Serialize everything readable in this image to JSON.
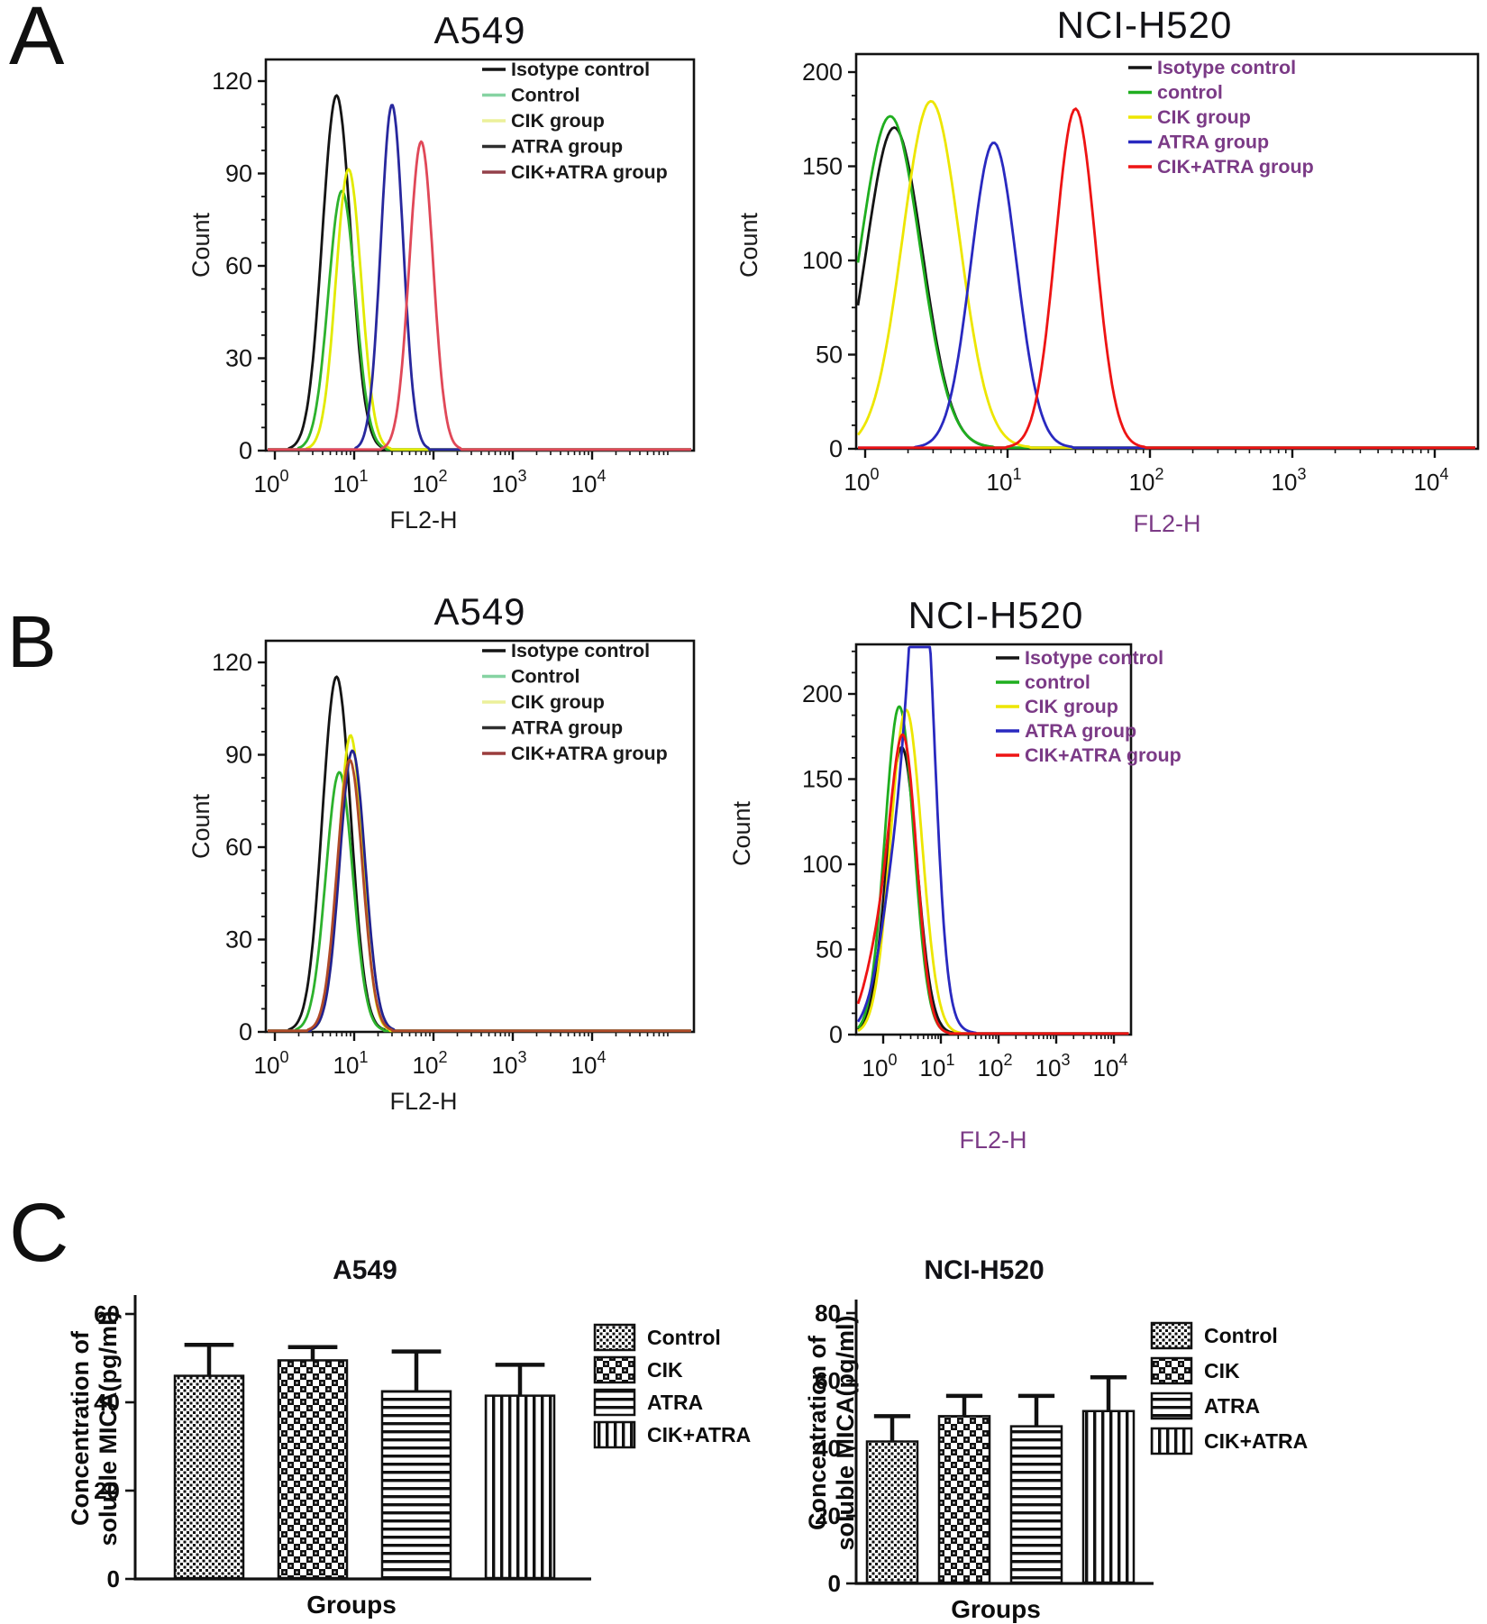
{
  "figure": {
    "panel_labels": {
      "a": "A",
      "b": "B",
      "c": "C"
    },
    "accent_colors": {
      "purple_legend_text": "#7b3a86",
      "black_text": "#111111",
      "series_black": "#141414",
      "series_green": "#22b122",
      "series_yellow": "#e8e400",
      "series_blue": "#2a2ab0",
      "series_red": "#ee1414",
      "series_crimson": "#e04858"
    }
  },
  "chart_data": [
    {
      "panel": "A",
      "side": "left",
      "type": "flow_histogram",
      "title": "A549",
      "xlabel": "FL2-H",
      "ylabel": "Count",
      "xscale": "log",
      "xtick_exponents": [
        0,
        1,
        2,
        3,
        4
      ],
      "ylim": [
        0,
        126
      ],
      "yticks": [
        0,
        30,
        60,
        90,
        120
      ],
      "grid": false,
      "legend_position": "top-right-inside",
      "legend_text_color": "#1a1a1a",
      "xlabel_color": "#1a1a1a",
      "series": [
        {
          "name": "Isotype control",
          "color": "#141414",
          "legend_color": "#141414",
          "peaks": [
            {
              "x": 6,
              "count": 115,
              "width_decades": 0.18
            }
          ]
        },
        {
          "name": "Control",
          "color": "#2db22d",
          "legend_color": "#86d3a2",
          "peaks": [
            {
              "x": 7,
              "count": 84,
              "width_decades": 0.17
            }
          ]
        },
        {
          "name": "CIK group",
          "color": "#e2ea00",
          "legend_color": "#ecf09a",
          "peaks": [
            {
              "x": 8.5,
              "count": 91,
              "width_decades": 0.16
            }
          ]
        },
        {
          "name": "ATRA group",
          "color": "#28289e",
          "legend_color": "#2f2f2f",
          "peaks": [
            {
              "x": 30,
              "count": 112,
              "width_decades": 0.14
            }
          ]
        },
        {
          "name": "CIK+ATRA group",
          "color": "#e04858",
          "legend_color": "#93404a",
          "peaks": [
            {
              "x": 70,
              "count": 100,
              "width_decades": 0.15
            }
          ]
        }
      ]
    },
    {
      "panel": "A",
      "side": "right",
      "type": "flow_histogram",
      "title": "NCI-H520",
      "xlabel": "FL2-H",
      "ylabel": "Count",
      "xscale": "log",
      "xtick_exponents": [
        0,
        1,
        2,
        3,
        4
      ],
      "ylim": [
        0,
        210
      ],
      "yticks": [
        0,
        50,
        100,
        150,
        200
      ],
      "grid": false,
      "legend_position": "top-right-inside",
      "legend_text_color": "#7b3a86",
      "xlabel_color": "#7b3a86",
      "series": [
        {
          "name": "Isotype control",
          "color": "#141414",
          "peaks": [
            {
              "x": 1.6,
              "count": 170,
              "width_decades": 0.2
            }
          ]
        },
        {
          "name": "control",
          "color": "#1fae1f",
          "peaks": [
            {
              "x": 1.5,
              "count": 176,
              "width_decades": 0.21
            }
          ]
        },
        {
          "name": "CIK group",
          "color": "#ede600",
          "peaks": [
            {
              "x": 2.9,
              "count": 184,
              "width_decades": 0.2
            }
          ]
        },
        {
          "name": "ATRA group",
          "color": "#2929c0",
          "peaks": [
            {
              "x": 8,
              "count": 162,
              "width_decades": 0.16
            }
          ]
        },
        {
          "name": "CIK+ATRA group",
          "color": "#ee1414",
          "peaks": [
            {
              "x": 30,
              "count": 180,
              "width_decades": 0.14
            }
          ]
        }
      ]
    },
    {
      "panel": "B",
      "side": "left",
      "type": "flow_histogram",
      "title": "A549",
      "xlabel": "FL2-H",
      "ylabel": "Count",
      "xscale": "log",
      "xtick_exponents": [
        0,
        1,
        2,
        3,
        4
      ],
      "ylim": [
        0,
        126
      ],
      "yticks": [
        0,
        30,
        60,
        90,
        120
      ],
      "grid": false,
      "legend_position": "top-right-inside",
      "legend_text_color": "#1a1a1a",
      "xlabel_color": "#1a1a1a",
      "series": [
        {
          "name": "Isotype control",
          "color": "#141414",
          "legend_color": "#141414",
          "peaks": [
            {
              "x": 6,
              "count": 115,
              "width_decades": 0.18
            }
          ]
        },
        {
          "name": "Control",
          "color": "#2db22d",
          "legend_color": "#86d3a2",
          "peaks": [
            {
              "x": 6.5,
              "count": 84,
              "width_decades": 0.17
            }
          ]
        },
        {
          "name": "CIK group",
          "color": "#e2ea00",
          "legend_color": "#ecf09a",
          "peaks": [
            {
              "x": 9,
              "count": 96,
              "width_decades": 0.15
            }
          ]
        },
        {
          "name": "ATRA group",
          "color": "#22228f",
          "legend_color": "#2f2f2f",
          "peaks": [
            {
              "x": 9.5,
              "count": 91,
              "width_decades": 0.16
            }
          ]
        },
        {
          "name": "CIK+ATRA group",
          "color": "#b04a28",
          "legend_color": "#9a3d3d",
          "peaks": [
            {
              "x": 8.8,
              "count": 88,
              "width_decades": 0.16
            }
          ]
        }
      ]
    },
    {
      "panel": "B",
      "side": "right",
      "type": "flow_histogram",
      "title": "NCI-H520",
      "xlabel": "FL2-H",
      "ylabel": "Count",
      "xscale": "log",
      "xtick_exponents": [
        0,
        1,
        2,
        3,
        4
      ],
      "ylim": [
        0,
        229
      ],
      "yticks": [
        0,
        50,
        100,
        150,
        200
      ],
      "grid": false,
      "legend_position": "right-overflow",
      "legend_text_color": "#7b3a86",
      "xlabel_color": "#7b3a86",
      "series": [
        {
          "name": "Isotype control",
          "color": "#141414",
          "peaks": [
            {
              "x": 2.1,
              "count": 168,
              "width_decades": 0.26
            }
          ]
        },
        {
          "name": "control",
          "color": "#1fae1f",
          "peaks": [
            {
              "x": 1.9,
              "count": 192,
              "width_decades": 0.25
            }
          ]
        },
        {
          "name": "CIK group",
          "color": "#ede600",
          "peaks": [
            {
              "x": 2.5,
              "count": 190,
              "width_decades": 0.27
            }
          ]
        },
        {
          "name": "ATRA group",
          "color": "#2929c0",
          "peaks": [
            {
              "x": 4.9,
              "count": 192,
              "width_decades": 0.2
            },
            {
              "x": 2.6,
              "count": 135,
              "width_decades": 0.35
            }
          ]
        },
        {
          "name": "CIK+ATRA group",
          "color": "#ee1414",
          "peaks": [
            {
              "x": 2.4,
              "count": 140,
              "width_decades": 0.22
            },
            {
              "x": 1.1,
              "count": 62,
              "width_decades": 0.3
            }
          ]
        }
      ]
    },
    {
      "panel": "C",
      "side": "left",
      "type": "bar",
      "title": "A549",
      "xlabel": "Groups",
      "ylabel_lines": [
        "Concentration of",
        "soluble MICA(pg/ml)"
      ],
      "ylim": [
        0,
        60
      ],
      "yticks": [
        0,
        20,
        40,
        60
      ],
      "grid": false,
      "legend_position": "right",
      "categories": [
        "Control",
        "CIK",
        "ATRA",
        "CIK+ATRA"
      ],
      "values": [
        46,
        49.5,
        42.5,
        41.5
      ],
      "errors_upper": [
        7,
        3,
        9,
        7
      ],
      "patterns": [
        "dots",
        "checker",
        "hlines",
        "vlines"
      ],
      "bar_color": "#111111"
    },
    {
      "panel": "C",
      "side": "right",
      "type": "bar",
      "title": "NCI-H520",
      "xlabel": "Groups",
      "ylabel_lines": [
        "Concentration of",
        "soluble MICA(pg/ml)"
      ],
      "ylim": [
        0,
        80
      ],
      "yticks": [
        0,
        20,
        40,
        60,
        80
      ],
      "grid": false,
      "legend_position": "right",
      "categories": [
        "Control",
        "CIK",
        "ATRA",
        "CIK+ATRA"
      ],
      "values": [
        42,
        49.5,
        46.5,
        51
      ],
      "errors_upper": [
        7.5,
        6,
        9,
        10
      ],
      "patterns": [
        "dots",
        "checker",
        "hlines",
        "vlines"
      ],
      "bar_color": "#111111"
    }
  ]
}
